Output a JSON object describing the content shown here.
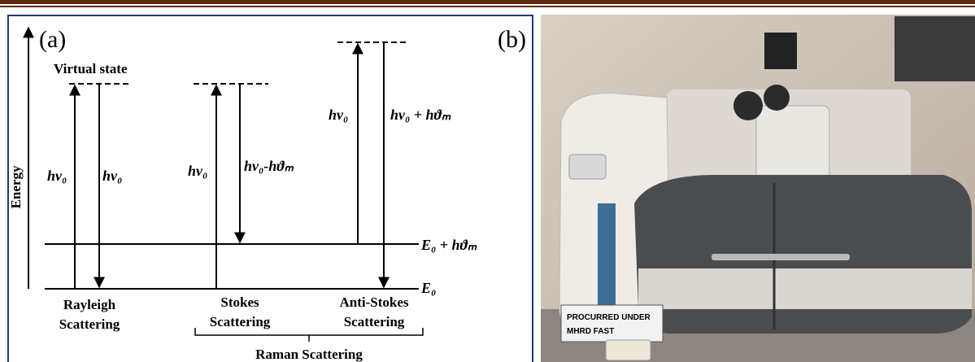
{
  "panel_a": {
    "label": "(a)",
    "axis_label": "Energy",
    "virtual_state": "Virtual state",
    "transitions": [
      "hν₀",
      "hν₀",
      "hν₀",
      "hν₀-hϑₘ",
      "hν₀",
      "hν₀ + hϑₘ"
    ],
    "levels": [
      "E₀ + hϑₘ",
      "E₀"
    ],
    "processes": [
      [
        "Rayleigh",
        "Scattering"
      ],
      [
        "Stokes",
        "Scattering"
      ],
      [
        "Anti-Stokes",
        "Scattering"
      ]
    ],
    "group": "Raman Scattering"
  },
  "panel_b": {
    "label": "(b)",
    "sign": [
      "PROCURRED UNDER",
      "MHRD FAST"
    ]
  }
}
